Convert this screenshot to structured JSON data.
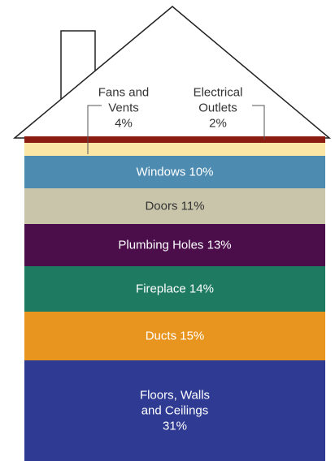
{
  "chart_data": {
    "type": "stacked-house",
    "categories": [
      "Electrical\nOutlets",
      "Fans and\nVents",
      "Windows",
      "Doors",
      "Plumbing Holes",
      "Fireplace",
      "Ducts",
      "Floors, Walls\nand Ceilings"
    ],
    "values": [
      2,
      4,
      10,
      11,
      13,
      14,
      15,
      31
    ],
    "value_labels": [
      "2%",
      "4%",
      "10%",
      "11%",
      "13%",
      "14%",
      "15%",
      "31%"
    ],
    "colors": [
      "#8a1c12",
      "#fbe6a6",
      "#4d8bb1",
      "#c9c5ab",
      "#4b0e4b",
      "#1f7a62",
      "#e8951f",
      "#2f3b93"
    ]
  }
}
